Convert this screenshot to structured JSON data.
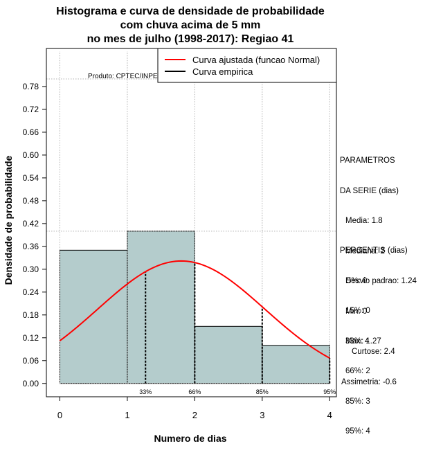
{
  "chart_data": {
    "type": "bar",
    "title_lines": [
      "Histograma e curva de densidade de probabilidade",
      "com chuva acima de 5 mm",
      "no mes de julho (1998-2017): Regiao 41"
    ],
    "xlabel": "Numero de dias",
    "ylabel": "Densidade de probabilidade",
    "xlim": [
      -0.2,
      4.1
    ],
    "ylim": [
      -0.035,
      0.88
    ],
    "x_ticks": [
      "0",
      "1",
      "2",
      "3",
      "4"
    ],
    "y_ticks": [
      "0.00",
      "0.06",
      "0.12",
      "0.18",
      "0.24",
      "0.30",
      "0.36",
      "0.42",
      "0.48",
      "0.54",
      "0.60",
      "0.66",
      "0.72",
      "0.78"
    ],
    "bins": [
      {
        "left": 0,
        "right": 1,
        "density": 0.35
      },
      {
        "left": 1,
        "right": 2,
        "density": 0.4
      },
      {
        "left": 2,
        "right": 3,
        "density": 0.15
      },
      {
        "left": 3,
        "right": 4,
        "density": 0.1
      }
    ],
    "normal_fit": {
      "mean": 1.8,
      "sd": 1.24,
      "x_from": 0,
      "x_to": 4
    },
    "percentile_lines": [
      {
        "label": "33%",
        "x": 1.27
      },
      {
        "label": "66%",
        "x": 2
      },
      {
        "label": "85%",
        "x": 3
      },
      {
        "label": "95%",
        "x": 4
      }
    ],
    "hgrid_levels": [
      0.4,
      0.8
    ],
    "product_label": "Produto: CPTEC/INPE",
    "legend": {
      "position": "top-right",
      "entries": [
        {
          "label": "Curva ajustada (funcao Normal)",
          "color": "#ff0000"
        },
        {
          "label": "Curva empirica",
          "color": "#000000"
        }
      ]
    },
    "colors": {
      "bar_fill": "#b4cccc",
      "curve": "#ff0000",
      "grid": "#b0b0b0"
    }
  },
  "parametros": {
    "heading": [
      "PARAMETROS",
      "DA SERIE (dias)"
    ],
    "items": [
      "Media: 1.8",
      "Mediana: 2",
      "Desvio padrao: 1.24",
      "Min: 0",
      "Max: 4"
    ]
  },
  "percentis": {
    "heading": "PERCENTIS (dias)",
    "items": [
      "5%: 0",
      "15%: 0",
      "33%: 1.27",
      "66%: 2",
      "85%: 3",
      "95%: 4"
    ]
  },
  "forma": {
    "curtose": "Curtose: 2.4",
    "assimetria": "Assimetria: -0.6"
  }
}
